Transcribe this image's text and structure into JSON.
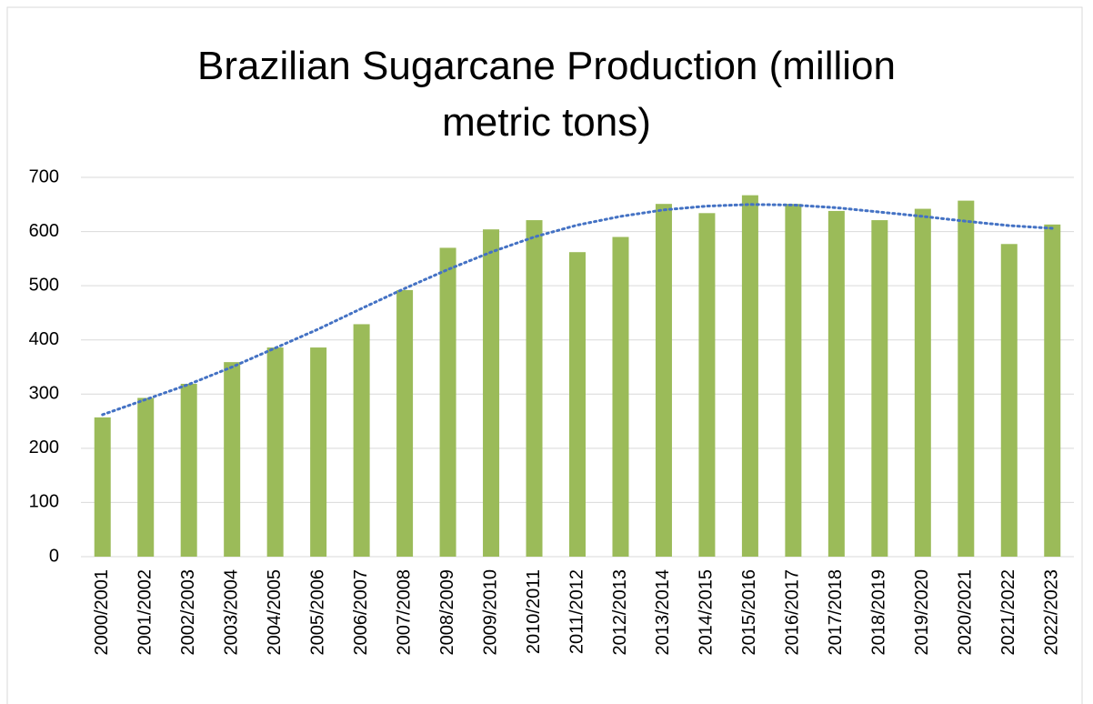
{
  "chart_data": {
    "type": "bar",
    "title": "Brazilian Sugarcane Production (million metric tons)",
    "categories": [
      "2000/2001",
      "2001/2002",
      "2002/2003",
      "2003/2004",
      "2004/2005",
      "2005/2006",
      "2006/2007",
      "2007/2008",
      "2008/2009",
      "2009/2010",
      "2010/2011",
      "2011/2012",
      "2012/2013",
      "2013/2014",
      "2014/2015",
      "2015/2016",
      "2016/2017",
      "2017/2018",
      "2018/2019",
      "2019/2020",
      "2020/2021",
      "2021/2022",
      "2022/2023"
    ],
    "values": [
      257,
      293,
      319,
      359,
      386,
      386,
      429,
      492,
      570,
      604,
      621,
      562,
      590,
      651,
      634,
      667,
      651,
      638,
      621,
      642,
      657,
      577,
      613
    ],
    "color": "#9bbb59",
    "trendline": {
      "values": [
        262,
        290,
        318,
        350,
        385,
        420,
        458,
        495,
        530,
        562,
        590,
        612,
        628,
        640,
        647,
        650,
        649,
        644,
        636,
        628,
        619,
        611,
        606
      ],
      "color": "#4472c4",
      "style": "dotted"
    },
    "ylim": [
      0,
      700
    ],
    "yticks": [
      0,
      100,
      200,
      300,
      400,
      500,
      600,
      700
    ],
    "grid": true
  }
}
